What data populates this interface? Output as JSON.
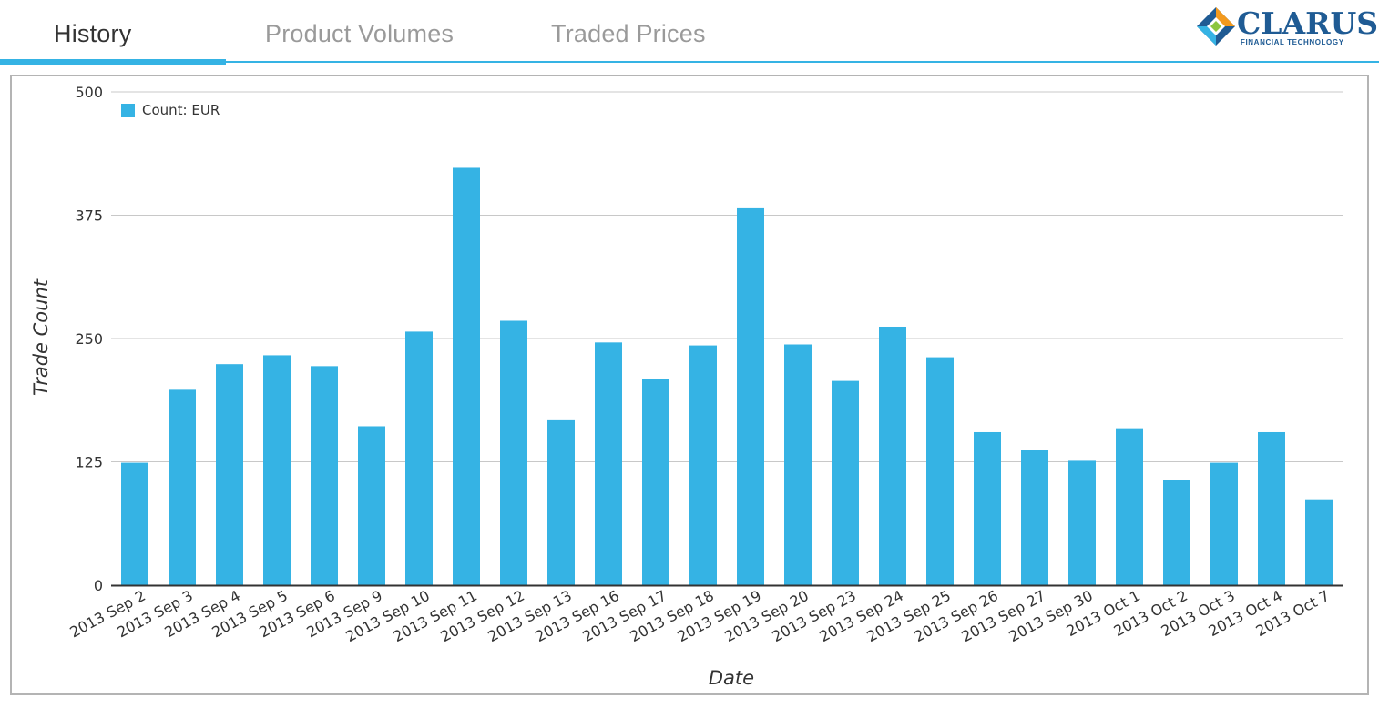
{
  "tabs": [
    {
      "label": "History",
      "active": true
    },
    {
      "label": "Product Volumes",
      "active": false
    },
    {
      "label": "Traded Prices",
      "active": false
    }
  ],
  "logo": {
    "name": "CLARUS",
    "tagline": "FINANCIAL TECHNOLOGY"
  },
  "colors": {
    "accent": "#35b3e4",
    "bar": "#35b3e4",
    "grid": "#c8c8c8",
    "axis": "#333333"
  },
  "chart_data": {
    "type": "bar",
    "xlabel": "Date",
    "ylabel": "Trade Count",
    "ylim": [
      0,
      500
    ],
    "yticks": [
      0,
      125,
      250,
      375,
      500
    ],
    "grid": true,
    "legend_position": "top-left",
    "categories": [
      "2013 Sep 2",
      "2013 Sep 3",
      "2013 Sep 4",
      "2013 Sep 5",
      "2013 Sep 6",
      "2013 Sep 9",
      "2013 Sep 10",
      "2013 Sep 11",
      "2013 Sep 12",
      "2013 Sep 13",
      "2013 Sep 16",
      "2013 Sep 17",
      "2013 Sep 18",
      "2013 Sep 19",
      "2013 Sep 20",
      "2013 Sep 23",
      "2013 Sep 24",
      "2013 Sep 25",
      "2013 Sep 26",
      "2013 Sep 27",
      "2013 Sep 30",
      "2013 Oct 1",
      "2013 Oct 2",
      "2013 Oct 3",
      "2013 Oct 4",
      "2013 Oct 7"
    ],
    "series": [
      {
        "name": "Count: EUR",
        "values": [
          124,
          198,
          224,
          233,
          222,
          161,
          257,
          423,
          268,
          168,
          246,
          209,
          243,
          382,
          244,
          207,
          262,
          231,
          155,
          137,
          126,
          159,
          107,
          124,
          155,
          87
        ]
      }
    ]
  }
}
